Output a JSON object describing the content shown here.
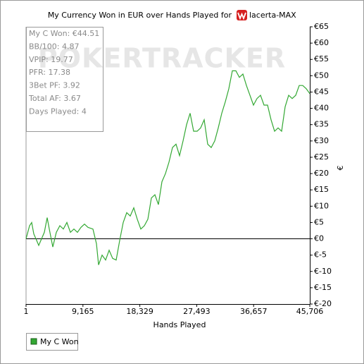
{
  "chart_data": {
    "type": "line",
    "title": "My Currency Won in EUR over Hands Played for",
    "player": "lacerta-MAX",
    "watermark": "POKERTRACKER",
    "annotations": [
      "My C Won: €44.51",
      "BB/100: 4.87",
      "VPIP: 19.77",
      "PFR: 17.38",
      "3Bet PF: 3.92",
      "Total AF: 3.67",
      "Days Played: 4"
    ],
    "x_label": "Hands Played",
    "y_label": "€",
    "x": [
      1,
      568,
      908,
      1248,
      1702,
      2041,
      2609,
      2949,
      3403,
      3743,
      4310,
      4877,
      5444,
      6011,
      6578,
      7145,
      7712,
      8279,
      8846,
      9413,
      9980,
      10774,
      11341,
      11681,
      12248,
      12815,
      13382,
      13949,
      14516,
      15083,
      15650,
      16217,
      16784,
      17351,
      17918,
      18485,
      19052,
      19619,
      20186,
      20753,
      21320,
      21887,
      22454,
      23021,
      23588,
      24155,
      24722,
      25289,
      25856,
      26423,
      26990,
      27557,
      28124,
      28691,
      29258,
      29825,
      30392,
      30959,
      31526,
      32093,
      32660,
      33227,
      33794,
      34361,
      34928,
      35495,
      36062,
      36629,
      37196,
      37763,
      38330,
      38897,
      39464,
      40031,
      40598,
      41165,
      41732,
      42299,
      42866,
      43433,
      44000,
      44567,
      45134,
      45706
    ],
    "series": [
      {
        "name": "My C Won",
        "color": "#33a833",
        "values": [
          0,
          4,
          5,
          1.5,
          -0.5,
          -2,
          0.5,
          2,
          6.5,
          3,
          -2.5,
          2,
          4,
          3,
          5,
          2,
          3,
          2,
          3.5,
          4.5,
          3.5,
          3,
          -1.5,
          -8,
          -5,
          -6.5,
          -3.5,
          -6,
          -6.5,
          -0.5,
          5,
          8,
          7,
          9.5,
          6,
          3,
          4,
          6,
          12.5,
          13.5,
          10.5,
          17.5,
          20,
          23.5,
          28,
          29,
          25.5,
          30,
          35,
          38.5,
          33,
          33,
          34,
          36.5,
          29,
          28,
          30,
          34,
          38.5,
          42,
          46,
          51.5,
          51.5,
          49.5,
          50.5,
          47,
          44,
          41,
          43,
          44,
          41,
          41,
          36.5,
          33,
          34,
          33,
          40.5,
          44,
          43,
          44,
          47,
          47,
          46,
          44.51
        ]
      }
    ],
    "xlim": [
      1,
      45706
    ],
    "xticks": [
      {
        "value": 1,
        "label": "1"
      },
      {
        "value": 9165,
        "label": "9,165"
      },
      {
        "value": 18329,
        "label": "18,329"
      },
      {
        "value": 27493,
        "label": "27,493"
      },
      {
        "value": 36657,
        "label": "36,657"
      },
      {
        "value": 45706,
        "label": "45,706"
      }
    ],
    "ylim": [
      -20,
      65
    ],
    "yticks": [
      {
        "value": 65,
        "label": "€65"
      },
      {
        "value": 60,
        "label": "€60"
      },
      {
        "value": 55,
        "label": "€55"
      },
      {
        "value": 50,
        "label": "€50"
      },
      {
        "value": 45,
        "label": "€45"
      },
      {
        "value": 40,
        "label": "€40"
      },
      {
        "value": 35,
        "label": "€35"
      },
      {
        "value": 30,
        "label": "€30"
      },
      {
        "value": 25,
        "label": "€25"
      },
      {
        "value": 20,
        "label": "€20"
      },
      {
        "value": 15,
        "label": "€15"
      },
      {
        "value": 10,
        "label": "€10"
      },
      {
        "value": 5,
        "label": "€5"
      },
      {
        "value": 0,
        "label": "€0"
      },
      {
        "value": -5,
        "label": "€-5"
      },
      {
        "value": -10,
        "label": "€-10"
      },
      {
        "value": -15,
        "label": "€-15"
      },
      {
        "value": -20,
        "label": "€-20"
      }
    ],
    "grid": false,
    "zero_line": true,
    "legend": "bottom-left"
  }
}
